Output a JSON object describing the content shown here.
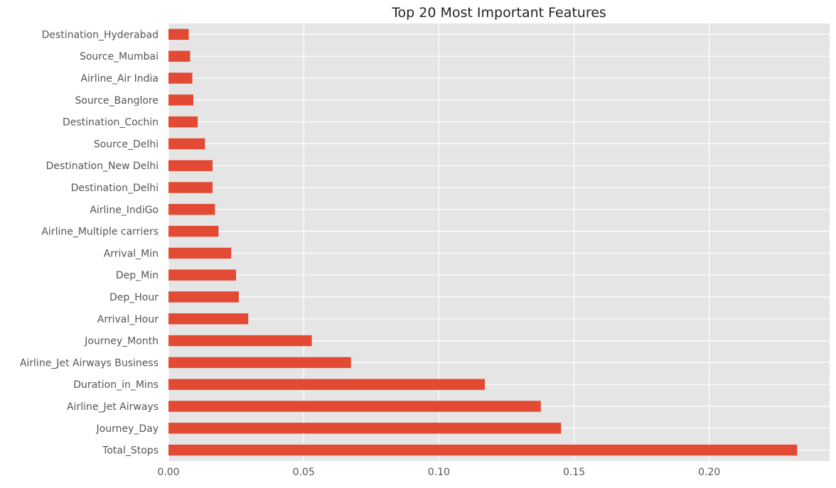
{
  "chart_data": {
    "type": "bar",
    "orientation": "horizontal",
    "title": "Top 20 Most Important Features",
    "xlabel": "",
    "ylabel": "",
    "xlim": [
      0,
      0.2445
    ],
    "x_ticks": [
      0.0,
      0.05,
      0.1,
      0.15,
      0.2
    ],
    "x_tick_labels": [
      "0.00",
      "0.05",
      "0.10",
      "0.15",
      "0.20"
    ],
    "grid": true,
    "style": "ggplot",
    "colors": {
      "bar": "#E24A33",
      "plot_bg": "#E5E5E5",
      "grid": "#FFFFFF",
      "text": "#555555"
    },
    "categories": [
      "Total_Stops",
      "Journey_Day",
      "Airline_Jet Airways",
      "Duration_in_Mins",
      "Airline_Jet Airways Business",
      "Journey_Month",
      "Arrival_Hour",
      "Dep_Hour",
      "Dep_Min",
      "Arrival_Min",
      "Airline_Multiple carriers",
      "Airline_IndiGo",
      "Destination_Delhi",
      "Destination_New Delhi",
      "Source_Delhi",
      "Destination_Cochin",
      "Source_Banglore",
      "Airline_Air India",
      "Source_Mumbai",
      "Destination_Hyderabad"
    ],
    "values": [
      0.2325,
      0.1452,
      0.1377,
      0.117,
      0.0675,
      0.053,
      0.0295,
      0.026,
      0.025,
      0.0232,
      0.0185,
      0.0172,
      0.0163,
      0.0163,
      0.0135,
      0.0108,
      0.0092,
      0.0088,
      0.008,
      0.0075
    ]
  }
}
